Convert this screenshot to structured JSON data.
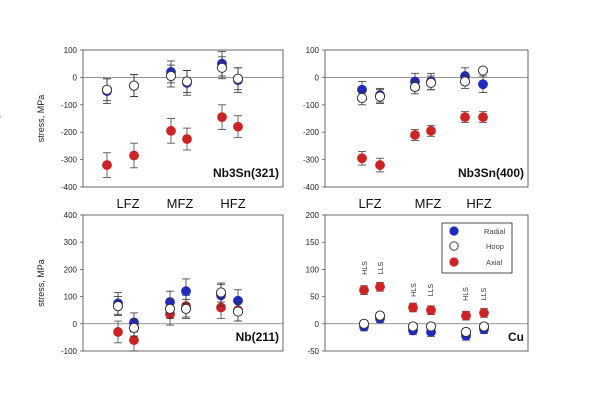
{
  "colors": {
    "radial": "#1f2bbf",
    "hoop": "#ffffff",
    "axial": "#cc2424",
    "axis": "#444444"
  },
  "zones": [
    "LFZ",
    "MFZ",
    "HFZ"
  ],
  "legend": [
    {
      "key": "radial",
      "label": "Radial",
      "icon": "filled-blue-circle"
    },
    {
      "key": "hoop",
      "label": "Hoop",
      "icon": "open-circle"
    },
    {
      "key": "axial",
      "label": "Axial",
      "icon": "filled-red-circle"
    }
  ],
  "annotations": [
    "HLS",
    "LLS",
    "HLS",
    "LLS",
    "HLS",
    "LLS"
  ],
  "chart_data": [
    {
      "type": "scatter",
      "label": "Nb3Sn(321)",
      "ylabel": "stress, MPa",
      "ylim": [
        -400,
        100
      ],
      "yticks": [
        100,
        0,
        -100,
        -200,
        -300,
        -400
      ],
      "x": [
        1,
        2,
        3,
        4,
        5,
        6
      ],
      "series": [
        {
          "name": "Radial",
          "values": [
            -50,
            -30,
            20,
            -20,
            50,
            -10
          ],
          "err": [
            45,
            40,
            40,
            45,
            45,
            45
          ]
        },
        {
          "name": "Hoop",
          "values": [
            -45,
            -30,
            5,
            -15,
            35,
            -5
          ],
          "err": [
            40,
            40,
            40,
            40,
            40,
            40
          ]
        },
        {
          "name": "Axial",
          "values": [
            -320,
            -285,
            -195,
            -225,
            -145,
            -180
          ],
          "err": [
            45,
            45,
            45,
            40,
            45,
            40
          ]
        }
      ]
    },
    {
      "type": "scatter",
      "label": "Nb3Sn(400)",
      "ylabel": "stress, MPa",
      "ylim": [
        -400,
        100
      ],
      "yticks": [
        100,
        0,
        -100,
        -200,
        -300,
        -400
      ],
      "x": [
        1,
        2,
        3,
        4,
        5,
        6
      ],
      "series": [
        {
          "name": "Radial",
          "values": [
            -45,
            -65,
            -15,
            -15,
            5,
            -25
          ],
          "err": [
            30,
            25,
            30,
            30,
            30,
            30
          ]
        },
        {
          "name": "Hoop",
          "values": [
            -75,
            -70,
            -35,
            -20,
            -15,
            25
          ],
          "err": [
            25,
            25,
            25,
            25,
            25,
            10
          ]
        },
        {
          "name": "Axial",
          "values": [
            -295,
            -320,
            -210,
            -195,
            -145,
            -145
          ],
          "err": [
            25,
            25,
            20,
            20,
            20,
            20
          ]
        }
      ]
    },
    {
      "type": "scatter",
      "label": "Nb(211)",
      "ylabel": "stress, MPa",
      "ylim": [
        -100,
        400
      ],
      "yticks": [
        400,
        300,
        200,
        100,
        0,
        -100
      ],
      "x": [
        1,
        2,
        3,
        4,
        5,
        6
      ],
      "series": [
        {
          "name": "Radial",
          "values": [
            75,
            5,
            80,
            120,
            105,
            85
          ],
          "err": [
            40,
            35,
            40,
            45,
            40,
            40
          ]
        },
        {
          "name": "Hoop",
          "values": [
            65,
            -15,
            55,
            55,
            115,
            45
          ],
          "err": [
            35,
            30,
            35,
            35,
            35,
            35
          ]
        },
        {
          "name": "Axial",
          "values": [
            -30,
            -60,
            35,
            65,
            60,
            50
          ],
          "err": [
            40,
            40,
            40,
            40,
            40,
            40
          ]
        }
      ]
    },
    {
      "type": "scatter",
      "label": "Cu",
      "ylabel": "",
      "ylim": [
        -50,
        200
      ],
      "yticks": [
        200,
        150,
        100,
        50,
        0,
        -50
      ],
      "x": [
        1,
        2,
        3,
        4,
        5,
        6
      ],
      "series": [
        {
          "name": "Radial",
          "values": [
            -5,
            10,
            -12,
            -15,
            -22,
            -10
          ],
          "err": [
            8,
            8,
            8,
            8,
            8,
            8
          ]
        },
        {
          "name": "Hoop",
          "values": [
            0,
            15,
            -5,
            -5,
            -15,
            -5
          ],
          "err": [
            6,
            6,
            6,
            6,
            6,
            6
          ]
        },
        {
          "name": "Axial",
          "values": [
            62,
            68,
            30,
            25,
            15,
            20
          ],
          "err": [
            8,
            8,
            8,
            8,
            8,
            8
          ]
        }
      ]
    }
  ]
}
